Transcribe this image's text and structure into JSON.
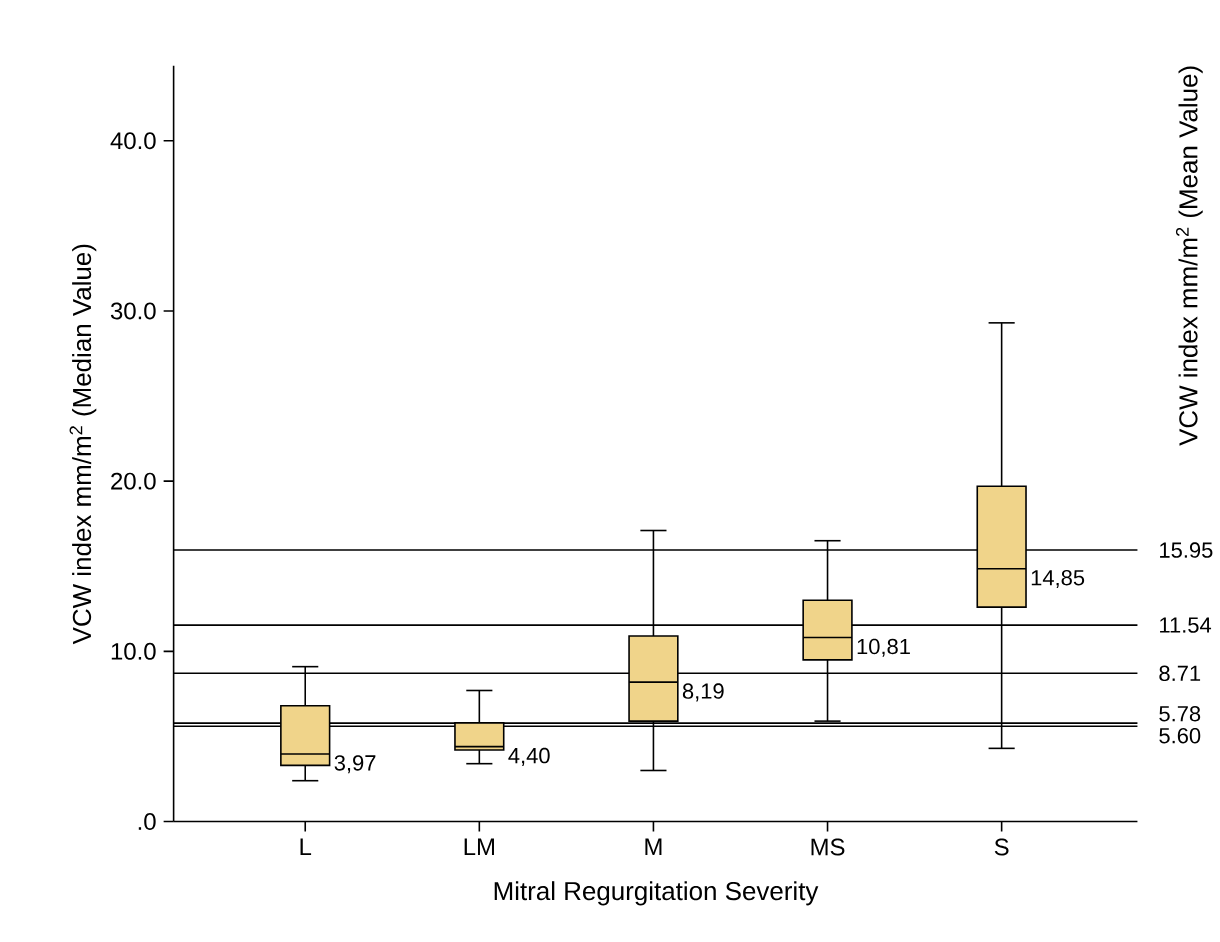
{
  "chart_data": {
    "type": "box",
    "xlabel": "Mitral Regurgitation Severity",
    "ylabel": "VCW index mm/m$^{2}$ (Median Value)",
    "y2label": "VCW index mm/m$^{2}$ (Mean Value)",
    "categories": [
      "L",
      "LM",
      "M",
      "MS",
      "S"
    ],
    "color": "#f0d48a",
    "boxes": [
      {
        "low": 2.4,
        "q1": 3.3,
        "median": 3.97,
        "q3": 6.8,
        "high": 9.1
      },
      {
        "low": 3.4,
        "q1": 4.2,
        "median": 4.4,
        "q3": 5.8,
        "high": 7.7
      },
      {
        "low": 3.0,
        "q1": 5.9,
        "median": 8.19,
        "q3": 10.9,
        "high": 17.1
      },
      {
        "low": 5.9,
        "q1": 9.5,
        "median": 10.81,
        "q3": 13.0,
        "high": 16.5
      },
      {
        "low": 4.3,
        "q1": 12.6,
        "median": 14.85,
        "q3": 19.7,
        "high": 29.3
      }
    ],
    "value_labels": [
      "3,97",
      "4,40",
      "8,19",
      "10,81",
      "14,85"
    ],
    "ylim": [
      0,
      44.4
    ],
    "yticks": [
      {
        "value": 0,
        "label": ".0"
      },
      {
        "value": 10,
        "label": "10.0"
      },
      {
        "value": 20,
        "label": "20.0"
      },
      {
        "value": 30,
        "label": "30.0"
      },
      {
        "value": 40,
        "label": "40.0"
      }
    ],
    "ref_lines": [
      {
        "axis": "y",
        "value": 15.95,
        "label": "15.95",
        "color": "#000000"
      },
      {
        "axis": "y",
        "value": 11.54,
        "label": "11.54",
        "color": "#000000"
      },
      {
        "axis": "y",
        "value": 8.71,
        "label": "8.71",
        "color": "#000000"
      },
      {
        "axis": "y",
        "value": 5.78,
        "label": "5.78",
        "color": "#000000"
      },
      {
        "axis": "y",
        "value": 5.6,
        "label": "5.60",
        "color": "#000000"
      }
    ]
  }
}
